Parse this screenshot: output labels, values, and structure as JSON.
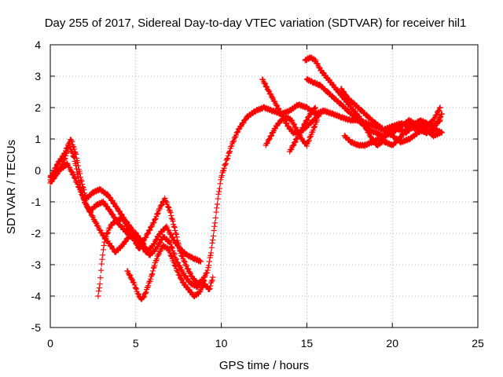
{
  "chart_data": {
    "type": "scatter",
    "title": "Day 255 of 2017, Sidereal Day-to-day VTEC variation (SDTVAR) for receiver hil1",
    "xlabel": "GPS time / hours",
    "ylabel": "SDTVAR / TECUs",
    "xlim": [
      0,
      25
    ],
    "ylim": [
      -5,
      4
    ],
    "xticks": [
      0,
      5,
      10,
      15,
      20,
      25
    ],
    "yticks": [
      -5,
      -4,
      -3,
      -2,
      -1,
      0,
      1,
      2,
      3,
      4
    ],
    "grid": true,
    "marker": "+",
    "colors": {
      "series": "#ff0000",
      "grid": "#a0a0a0",
      "axis": "#000000"
    },
    "series": [
      {
        "values": [
          [
            0.0,
            -0.4
          ],
          [
            0.4,
            -0.1
          ],
          [
            0.8,
            0.3
          ],
          [
            1.1,
            0.8
          ],
          [
            1.4,
            0.4
          ],
          [
            1.7,
            -0.4
          ],
          [
            2.0,
            -1.0
          ],
          [
            2.3,
            -1.3
          ],
          [
            2.7,
            -1.1
          ],
          [
            3.1,
            -1.0
          ],
          [
            3.5,
            -1.3
          ],
          [
            4.0,
            -1.7
          ],
          [
            4.5,
            -2.0
          ],
          [
            4.9,
            -2.2
          ],
          [
            5.2,
            -2.5
          ],
          [
            5.5,
            -2.2
          ],
          [
            5.8,
            -1.9
          ],
          [
            6.1,
            -1.6
          ],
          [
            6.4,
            -1.2
          ],
          [
            6.7,
            -0.9
          ],
          [
            7.0,
            -1.3
          ],
          [
            7.3,
            -1.9
          ],
          [
            7.6,
            -2.6
          ],
          [
            8.0,
            -3.1
          ],
          [
            8.3,
            -3.4
          ],
          [
            8.6,
            -3.6
          ],
          [
            8.9,
            -3.5
          ],
          [
            9.2,
            -3.2
          ],
          [
            9.4,
            -2.6
          ],
          [
            9.6,
            -1.8
          ],
          [
            9.8,
            -0.9
          ],
          [
            10.0,
            -0.2
          ],
          [
            10.3,
            0.3
          ],
          [
            10.6,
            0.8
          ],
          [
            11.0,
            1.3
          ],
          [
            11.5,
            1.7
          ],
          [
            12.0,
            1.9
          ],
          [
            12.5,
            2.0
          ],
          [
            13.0,
            1.9
          ],
          [
            13.5,
            1.8
          ],
          [
            14.0,
            1.9
          ],
          [
            14.5,
            2.1
          ],
          [
            15.0,
            2.0
          ],
          [
            15.5,
            1.8
          ],
          [
            16.0,
            1.9
          ],
          [
            16.5,
            1.8
          ],
          [
            17.0,
            1.7
          ],
          [
            17.5,
            1.6
          ],
          [
            18.0,
            1.6
          ],
          [
            18.5,
            1.5
          ],
          [
            19.0,
            1.4
          ],
          [
            19.5,
            1.3
          ],
          [
            20.0,
            1.4
          ],
          [
            20.5,
            1.5
          ],
          [
            21.0,
            1.4
          ],
          [
            21.5,
            1.3
          ],
          [
            22.0,
            1.2
          ],
          [
            22.5,
            1.3
          ],
          [
            22.9,
            1.2
          ]
        ]
      },
      {
        "values": [
          [
            0.0,
            -0.3
          ],
          [
            0.4,
            0.2
          ],
          [
            0.8,
            0.5
          ],
          [
            1.2,
            1.0
          ],
          [
            1.5,
            0.5
          ],
          [
            1.8,
            -0.3
          ],
          [
            2.1,
            -0.9
          ],
          [
            2.5,
            -0.7
          ],
          [
            2.9,
            -0.6
          ],
          [
            3.4,
            -0.8
          ],
          [
            3.9,
            -1.2
          ],
          [
            4.4,
            -1.6
          ],
          [
            4.8,
            -1.9
          ],
          [
            5.2,
            -2.3
          ],
          [
            5.6,
            -2.6
          ],
          [
            6.0,
            -2.4
          ],
          [
            6.4,
            -2.0
          ],
          [
            6.8,
            -1.8
          ],
          [
            7.2,
            -2.2
          ],
          [
            7.6,
            -2.5
          ],
          [
            8.0,
            -2.7
          ],
          [
            8.4,
            -2.8
          ],
          [
            8.8,
            -2.9
          ]
        ]
      },
      {
        "values": [
          [
            0.0,
            -0.2
          ],
          [
            0.5,
            0.0
          ],
          [
            1.0,
            0.2
          ],
          [
            1.4,
            -0.2
          ],
          [
            1.8,
            -0.7
          ],
          [
            2.2,
            -1.2
          ],
          [
            2.6,
            -1.6
          ],
          [
            3.0,
            -2.0
          ],
          [
            3.4,
            -2.3
          ],
          [
            3.8,
            -2.6
          ],
          [
            4.2,
            -2.4
          ],
          [
            4.6,
            -2.1
          ],
          [
            5.0,
            -2.0
          ],
          [
            5.4,
            -2.3
          ],
          [
            5.8,
            -2.7
          ],
          [
            6.2,
            -2.5
          ],
          [
            6.6,
            -2.1
          ],
          [
            7.0,
            -2.3
          ],
          [
            7.4,
            -2.9
          ],
          [
            7.8,
            -3.3
          ],
          [
            8.2,
            -3.6
          ],
          [
            8.6,
            -3.7
          ],
          [
            9.0,
            -3.5
          ]
        ]
      },
      {
        "values": [
          [
            2.8,
            -4.0
          ],
          [
            2.9,
            -3.6
          ],
          [
            3.0,
            -3.0
          ],
          [
            3.1,
            -2.5
          ],
          [
            3.2,
            -2.2
          ],
          [
            3.4,
            -1.9
          ],
          [
            3.6,
            -1.7
          ],
          [
            3.9,
            -1.6
          ],
          [
            4.2,
            -1.5
          ],
          [
            4.5,
            -1.8
          ],
          [
            4.8,
            -2.1
          ]
        ]
      },
      {
        "values": [
          [
            4.5,
            -3.2
          ],
          [
            4.7,
            -3.4
          ],
          [
            4.9,
            -3.6
          ],
          [
            5.1,
            -3.9
          ],
          [
            5.3,
            -4.1
          ],
          [
            5.5,
            -4.0
          ],
          [
            5.7,
            -3.7
          ],
          [
            5.9,
            -3.4
          ],
          [
            6.1,
            -3.0
          ],
          [
            6.3,
            -2.7
          ],
          [
            6.6,
            -2.4
          ],
          [
            6.9,
            -2.5
          ],
          [
            7.2,
            -2.9
          ],
          [
            7.5,
            -3.3
          ],
          [
            7.8,
            -3.6
          ],
          [
            8.1,
            -3.8
          ],
          [
            8.4,
            -4.0
          ],
          [
            8.7,
            -3.9
          ],
          [
            9.0,
            -3.6
          ],
          [
            9.3,
            -3.8
          ],
          [
            9.5,
            -3.4
          ]
        ]
      },
      {
        "values": [
          [
            12.4,
            2.9
          ],
          [
            12.7,
            2.6
          ],
          [
            13.0,
            2.3
          ],
          [
            13.3,
            2.0
          ],
          [
            13.6,
            1.7
          ],
          [
            13.9,
            1.4
          ],
          [
            14.2,
            1.2
          ],
          [
            14.6,
            1.2
          ],
          [
            15.0,
            1.4
          ],
          [
            15.4,
            1.6
          ],
          [
            15.8,
            1.8
          ]
        ]
      },
      {
        "values": [
          [
            12.6,
            0.8
          ],
          [
            12.9,
            1.1
          ],
          [
            13.2,
            1.4
          ],
          [
            13.5,
            1.6
          ],
          [
            13.8,
            1.7
          ],
          [
            14.1,
            1.6
          ],
          [
            14.4,
            1.3
          ],
          [
            14.7,
            1.0
          ],
          [
            15.0,
            0.8
          ],
          [
            15.3,
            1.2
          ],
          [
            15.6,
            1.6
          ]
        ]
      },
      {
        "values": [
          [
            14.0,
            0.6
          ],
          [
            14.3,
            0.9
          ],
          [
            14.6,
            1.2
          ],
          [
            14.9,
            1.5
          ],
          [
            15.2,
            1.8
          ],
          [
            15.5,
            2.0
          ]
        ]
      },
      {
        "values": [
          [
            14.9,
            3.5
          ],
          [
            15.2,
            3.6
          ],
          [
            15.5,
            3.5
          ],
          [
            15.8,
            3.2
          ],
          [
            16.1,
            3.0
          ],
          [
            16.4,
            2.8
          ],
          [
            16.7,
            2.6
          ],
          [
            17.0,
            2.4
          ],
          [
            17.3,
            2.2
          ],
          [
            17.6,
            2.0
          ],
          [
            17.9,
            1.8
          ],
          [
            18.2,
            1.6
          ],
          [
            18.5,
            1.3
          ],
          [
            18.8,
            1.0
          ],
          [
            19.1,
            0.8
          ],
          [
            19.4,
            0.9
          ],
          [
            19.7,
            1.2
          ],
          [
            20.0,
            1.4
          ],
          [
            20.4,
            1.3
          ],
          [
            20.8,
            1.2
          ],
          [
            21.2,
            1.4
          ],
          [
            21.6,
            1.6
          ],
          [
            22.0,
            1.5
          ],
          [
            22.4,
            1.4
          ],
          [
            22.8,
            1.6
          ]
        ]
      },
      {
        "values": [
          [
            15.0,
            2.9
          ],
          [
            15.4,
            2.8
          ],
          [
            15.8,
            2.7
          ],
          [
            16.2,
            2.5
          ],
          [
            16.6,
            2.3
          ],
          [
            17.0,
            2.1
          ],
          [
            17.4,
            1.9
          ],
          [
            17.8,
            1.7
          ],
          [
            18.2,
            1.5
          ],
          [
            18.6,
            1.3
          ],
          [
            19.0,
            1.2
          ],
          [
            19.5,
            1.1
          ],
          [
            20.0,
            1.2
          ],
          [
            20.5,
            1.4
          ],
          [
            21.0,
            1.6
          ],
          [
            21.5,
            1.4
          ],
          [
            22.0,
            1.2
          ],
          [
            22.5,
            1.4
          ],
          [
            22.9,
            1.8
          ]
        ]
      },
      {
        "values": [
          [
            17.0,
            2.6
          ],
          [
            17.4,
            2.3
          ],
          [
            17.8,
            2.1
          ],
          [
            18.2,
            1.9
          ],
          [
            18.6,
            1.7
          ],
          [
            19.0,
            1.5
          ],
          [
            19.5,
            1.3
          ],
          [
            20.0,
            1.1
          ],
          [
            20.5,
            0.9
          ],
          [
            21.0,
            1.0
          ],
          [
            21.5,
            1.2
          ],
          [
            22.0,
            1.4
          ],
          [
            22.4,
            1.6
          ],
          [
            22.8,
            2.0
          ]
        ]
      },
      {
        "values": [
          [
            17.2,
            1.1
          ],
          [
            17.6,
            0.9
          ],
          [
            18.0,
            0.8
          ],
          [
            18.4,
            0.8
          ],
          [
            18.8,
            0.9
          ],
          [
            19.2,
            1.0
          ],
          [
            19.6,
            0.9
          ],
          [
            20.0,
            0.8
          ],
          [
            20.4,
            1.0
          ],
          [
            20.8,
            1.3
          ],
          [
            21.2,
            1.5
          ],
          [
            21.6,
            1.5
          ],
          [
            22.0,
            1.3
          ],
          [
            22.4,
            1.1
          ],
          [
            22.8,
            1.2
          ]
        ]
      }
    ]
  }
}
